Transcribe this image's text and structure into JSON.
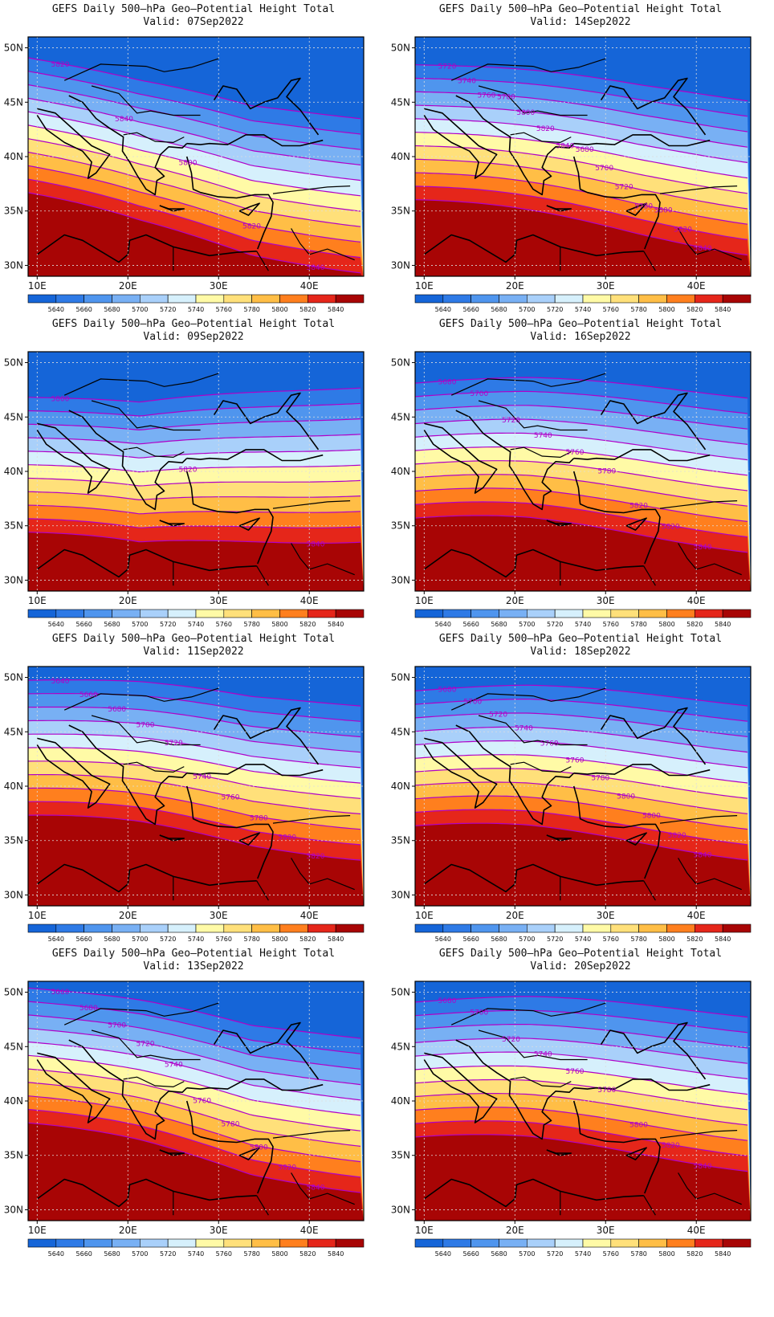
{
  "figure": {
    "title": "GEFS Daily 500–hPa Geo–Potential Height Total",
    "valid_prefix": "Valid:",
    "panels": [
      {
        "valid": "07Sep2022",
        "shift": [
          -6,
          12,
          26,
          30
        ],
        "labels": [
          "5820",
          "5840",
          "5800",
          "5820",
          "5840"
        ]
      },
      {
        "valid": "14Sep2022",
        "shift": [
          -2,
          6,
          14,
          20
        ],
        "labels": [
          "5720",
          "5740",
          "5760",
          "5780",
          "5800",
          "5820",
          "5840",
          "5680",
          "5700",
          "5720",
          "5780",
          "5800",
          "5820",
          "5840"
        ]
      },
      {
        "valid": "09Sep2022",
        "shift": [
          8,
          16,
          10,
          4
        ],
        "labels": [
          "5800",
          "5820",
          "5840"
        ]
      },
      {
        "valid": "16Sep2022",
        "shift": [
          0,
          2,
          6,
          10
        ],
        "labels": [
          "5680",
          "5700",
          "5720",
          "5740",
          "5760",
          "5780",
          "5820",
          "5820",
          "5840"
        ]
      },
      {
        "valid": "11Sep2022",
        "shift": [
          -10,
          -4,
          4,
          6
        ],
        "labels": [
          "5640",
          "5660",
          "5680",
          "5700",
          "5720",
          "5740",
          "5760",
          "5780",
          "5800",
          "5820"
        ]
      },
      {
        "valid": "18Sep2022",
        "shift": [
          -4,
          -2,
          2,
          6
        ],
        "labels": [
          "5680",
          "5700",
          "5720",
          "5740",
          "5760",
          "5760",
          "5780",
          "5800",
          "5800",
          "5820",
          "5840"
        ]
      },
      {
        "valid": "13Sep2022",
        "shift": [
          -14,
          -2,
          12,
          16
        ],
        "labels": [
          "5660",
          "5680",
          "5700",
          "5720",
          "5740",
          "5760",
          "5780",
          "5800",
          "5820",
          "5840"
        ]
      },
      {
        "valid": "20Sep2022",
        "shift": [
          -6,
          -4,
          0,
          4
        ],
        "labels": [
          "5680",
          "5700",
          "5720",
          "5740",
          "5760",
          "5780",
          "5800",
          "5820",
          "5840"
        ]
      }
    ],
    "lat_labels": [
      "50N",
      "45N",
      "40N",
      "35N",
      "30N"
    ],
    "lon_labels": [
      "10E",
      "20E",
      "30E",
      "40E"
    ],
    "colorbar": {
      "labels": [
        "5640",
        "5660",
        "5680",
        "5700",
        "5720",
        "5740",
        "5760",
        "5780",
        "5800",
        "5820",
        "5840"
      ],
      "colors": [
        "#1565d8",
        "#2e7ae6",
        "#4f95ee",
        "#78b0f4",
        "#a9d0fa",
        "#d6f0fc",
        "#fffaa6",
        "#ffe07a",
        "#ffbe46",
        "#ff7f1e",
        "#e5261a",
        "#a80505"
      ]
    },
    "contour_color": "#b000c8",
    "land_outline_color": "#000000"
  }
}
